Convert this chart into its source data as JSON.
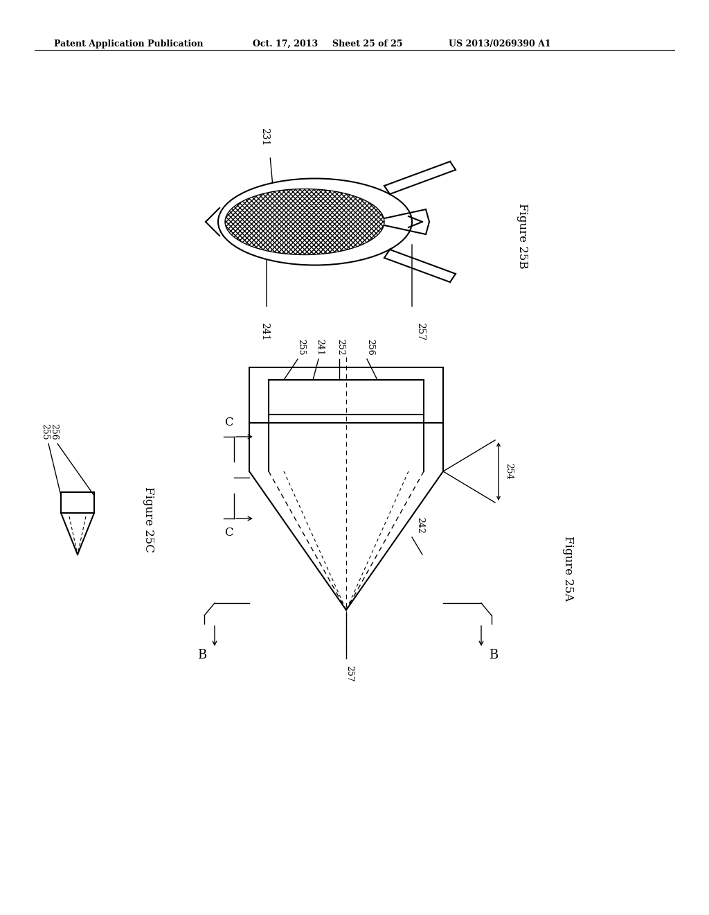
{
  "bg_color": "#ffffff",
  "line_color": "#000000",
  "header_text": "Patent Application Publication",
  "header_date": "Oct. 17, 2013",
  "header_sheet": "Sheet 25 of 25",
  "header_patent": "US 2013/0269390 A1"
}
